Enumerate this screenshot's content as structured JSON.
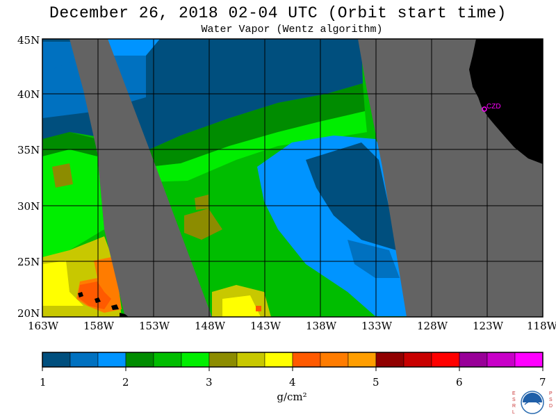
{
  "title": "December 26, 2018  02-04 UTC  (Orbit start time)",
  "subtitle": "Water Vapor (Wentz algorithm)",
  "lat_labels": [
    "45N",
    "40N",
    "35N",
    "30N",
    "25N",
    "20N"
  ],
  "lon_labels": [
    "163W",
    "158W",
    "153W",
    "148W",
    "143W",
    "138W",
    "133W",
    "128W",
    "123W",
    "118W"
  ],
  "station": "CZD",
  "colorbar": {
    "ticks": [
      "1",
      "2",
      "3",
      "4",
      "5",
      "6",
      "7"
    ],
    "units": "g/cm²",
    "colors": [
      "#004f7e",
      "#0071c0",
      "#0094ff",
      "#008c00",
      "#00bd00",
      "#00ee00",
      "#8c8c00",
      "#c8c800",
      "#ffff00",
      "#ff5a00",
      "#ff7c00",
      "#ff9e00",
      "#900000",
      "#c80000",
      "#ff0000",
      "#980098",
      "#c800c8",
      "#ff00ff"
    ]
  },
  "colors": {
    "no_data": "#636363",
    "land": "#000000",
    "grid": "#000000",
    "station": "#ff00ff"
  },
  "logo": {
    "left_text": "ESRL",
    "right_text": "PSD",
    "center_text": "NOAA"
  }
}
